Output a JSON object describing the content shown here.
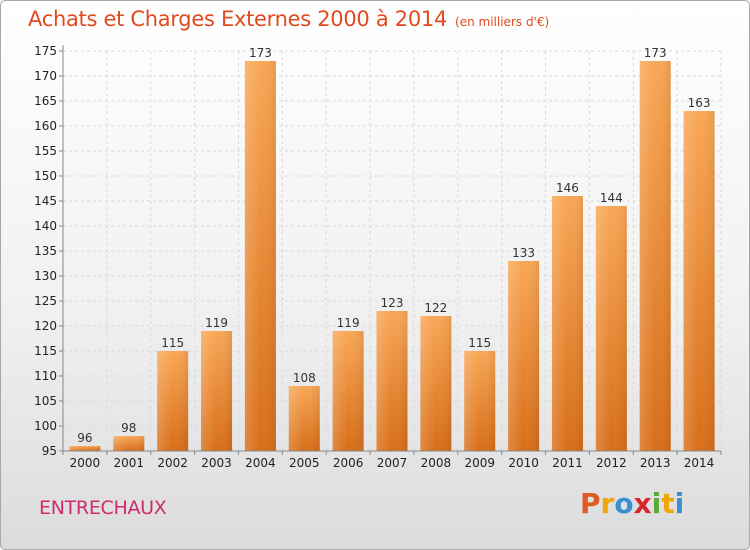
{
  "chart_data": {
    "type": "bar",
    "title": "Achats et Charges Externes 2000 à 2014",
    "subtitle": "(en milliers d'€)",
    "categories": [
      "2000",
      "2001",
      "2002",
      "2003",
      "2004",
      "2005",
      "2006",
      "2007",
      "2008",
      "2009",
      "2010",
      "2011",
      "2012",
      "2013",
      "2014"
    ],
    "values": [
      96,
      98,
      115,
      119,
      173,
      108,
      119,
      123,
      122,
      115,
      133,
      146,
      144,
      173,
      163
    ],
    "ylim": [
      95,
      175
    ],
    "yticks": [
      95,
      100,
      105,
      110,
      115,
      120,
      125,
      130,
      135,
      140,
      145,
      150,
      155,
      160,
      165,
      170,
      175
    ],
    "grid": true,
    "bar_color": "#f08a2a"
  },
  "footer": {
    "city": "ENTRECHAUX",
    "logo_letters": [
      "P",
      "r",
      "o",
      "x",
      "i",
      "t",
      "i"
    ],
    "logo_colors": [
      "#e0591f",
      "#f0a500",
      "#3a8fd0",
      "#d8262e",
      "#5aa838",
      "#f0a500",
      "#3a8fd0"
    ]
  },
  "colors": {
    "title": "#e04a1e",
    "city": "#cf2a6e"
  }
}
